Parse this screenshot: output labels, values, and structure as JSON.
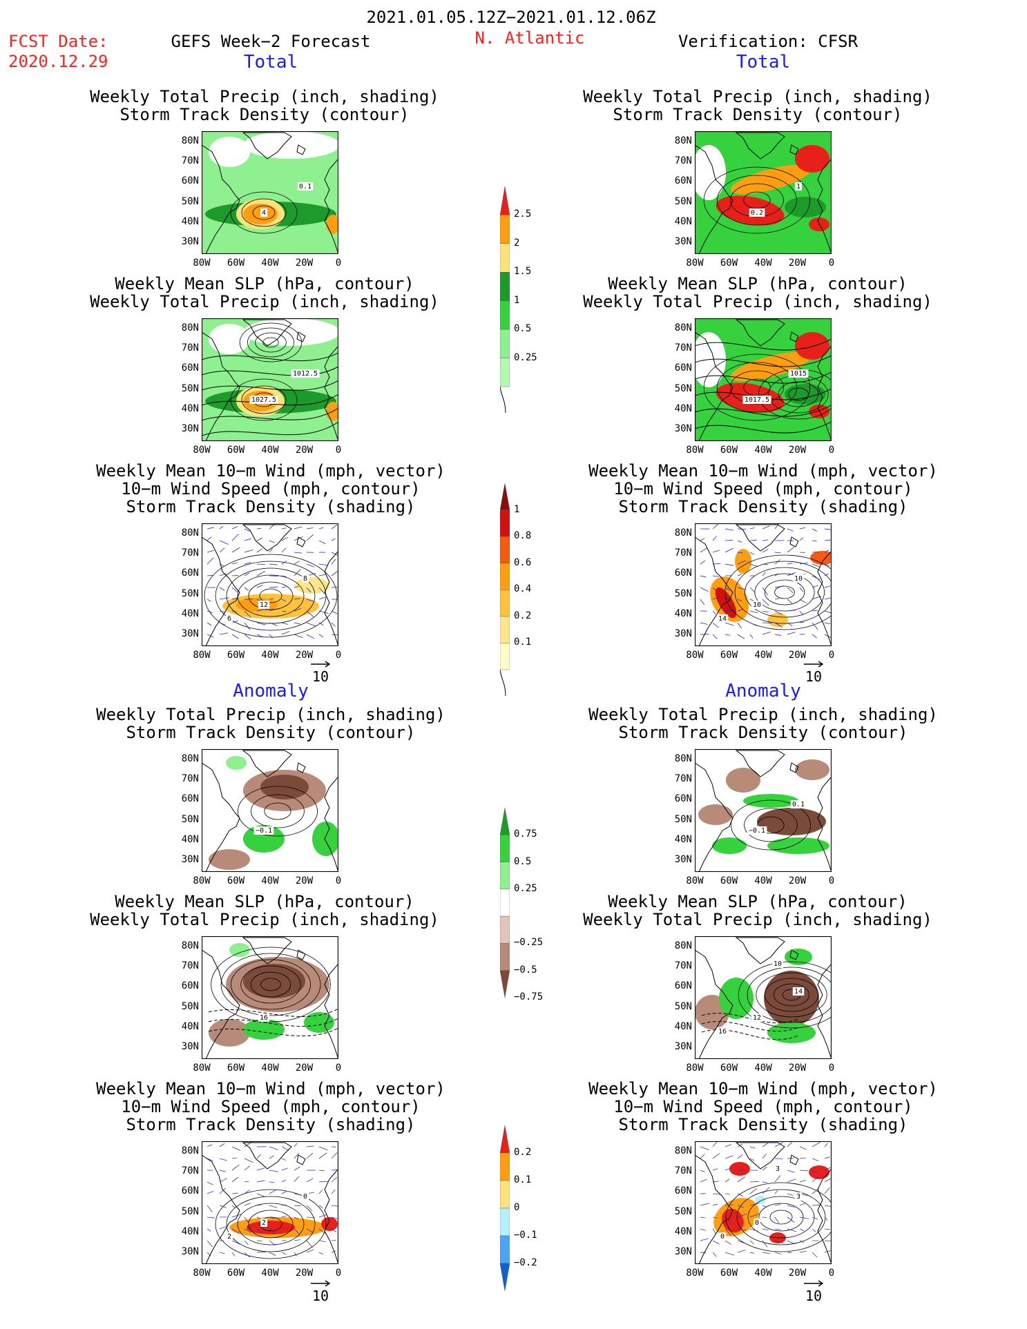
{
  "header": {
    "date_range": "2021.01.05.12Z−2021.01.12.06Z",
    "fcst_date_label": "FCST Date:",
    "fcst_date": "2020.12.29",
    "forecast_title": "GEFS Week−2 Forecast",
    "region": "N. Atlantic",
    "verification_title": "Verification: CFSR"
  },
  "sections": {
    "total": "Total",
    "anomaly": "Anomaly"
  },
  "panel_titles": {
    "precip_track": [
      "Weekly Total Precip (inch, shading)",
      "Storm Track Density (contour)"
    ],
    "slp_precip": [
      "Weekly Mean SLP (hPa, contour)",
      "Weekly Total Precip (inch, shading)"
    ],
    "wind_track": [
      "Weekly Mean 10−m Wind (mph, vector)",
      "10−m Wind Speed (mph, contour)",
      "Storm Track Density (shading)"
    ]
  },
  "axes": {
    "lat_labels": [
      "80N",
      "70N",
      "60N",
      "50N",
      "40N",
      "30N"
    ],
    "lon_labels": [
      "80W",
      "60W",
      "40W",
      "20W",
      "0"
    ]
  },
  "vector_ref": "10",
  "colorbars": {
    "precip_total": {
      "labels": [
        "2.5",
        "2",
        "1.5",
        "1",
        "0.5",
        "0.25"
      ],
      "colors": [
        "#e8201a",
        "#ff9e10",
        "#ffe27a",
        "#1d9b2a",
        "#36d23e",
        "#8ef08e",
        "#b4f8b4"
      ]
    },
    "track_total": {
      "labels": [
        "1",
        "0.8",
        "0.6",
        "0.4",
        "0.2",
        "0.1"
      ],
      "colors": [
        "#8c0c0c",
        "#d2100e",
        "#f65a10",
        "#ff9e10",
        "#ffc23c",
        "#ffe68c",
        "#fffbc8"
      ]
    },
    "precip_anom": {
      "labels": [
        "0.75",
        "0.5",
        "0.25",
        "−0.25",
        "−0.5",
        "−0.75"
      ],
      "colors": [
        "#1d9b2a",
        "#36d23e",
        "#8ef08e",
        "#ffffff",
        "#e2c4b8",
        "#b88a78",
        "#7a4a3a"
      ]
    },
    "track_anom": {
      "labels": [
        "0.2",
        "0.1",
        "0",
        "−0.1",
        "−0.2"
      ],
      "colors": [
        "#e8201a",
        "#ff9e10",
        "#ffe27a",
        "#b4f0ff",
        "#4aa6f0",
        "#1060d0"
      ]
    }
  },
  "contour_labels": {
    "gefs_total_precip": [
      "4",
      "0.1"
    ],
    "cfsr_total_precip": [
      "0.2",
      "1"
    ],
    "gefs_total_slp": [
      "1027.5",
      "1012.5"
    ],
    "cfsr_total_slp": [
      "1017.5",
      "1015"
    ],
    "gefs_total_wind": [
      "12",
      "8",
      "6"
    ],
    "cfsr_total_wind": [
      "10",
      "10",
      "14"
    ],
    "gefs_anom_precip": [
      "−0.1"
    ],
    "cfsr_anom_precip": [
      "−0.1",
      "0.1"
    ],
    "gefs_anom_slp": [
      "16"
    ],
    "cfsr_anom_slp": [
      "12",
      "14",
      "16",
      "10"
    ],
    "gefs_anom_wind": [
      "2",
      "0",
      "2"
    ],
    "cfsr_anom_wind": [
      "0",
      "3",
      "0",
      "3"
    ]
  }
}
